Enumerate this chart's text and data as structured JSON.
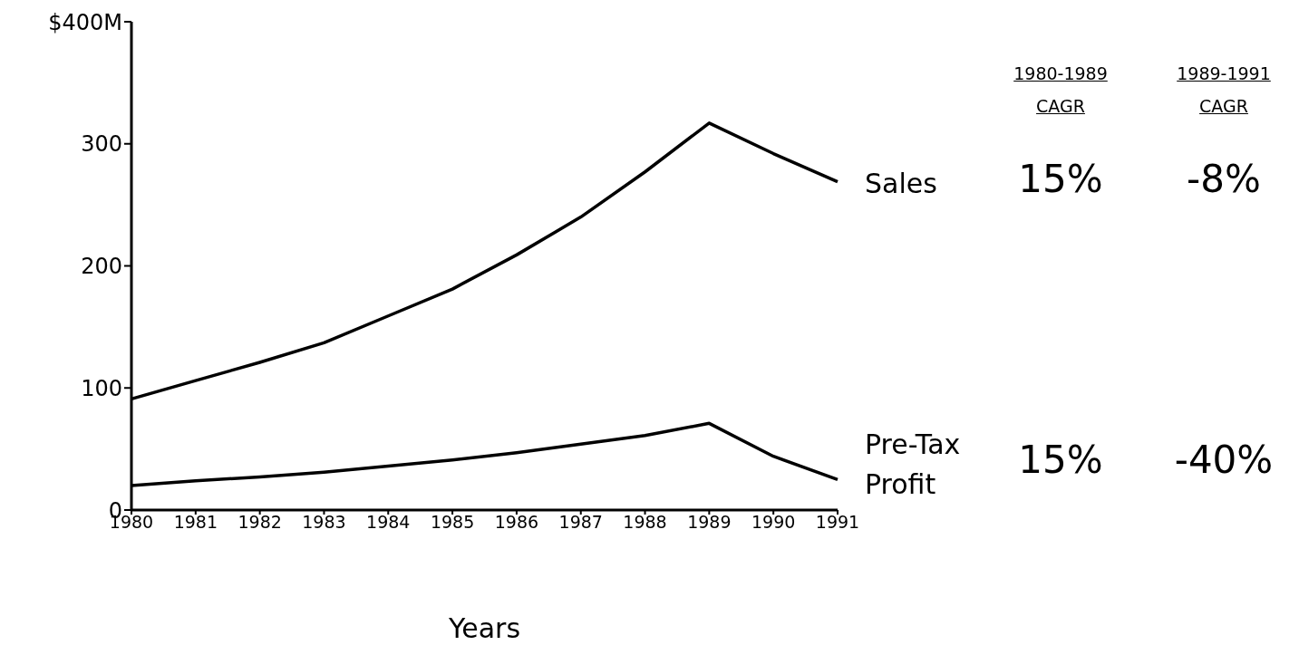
{
  "chart_data": {
    "type": "line",
    "xlabel": "Years",
    "categories": [
      "1980",
      "1981",
      "1982",
      "1983",
      "1984",
      "1985",
      "1986",
      "1987",
      "1988",
      "1989",
      "1990",
      "1991"
    ],
    "series": [
      {
        "name": "Sales",
        "color": "#000000",
        "values": [
          91,
          106,
          121,
          137,
          159,
          181,
          209,
          240,
          277,
          317,
          292,
          269
        ]
      },
      {
        "name": "Pre-Tax Profit",
        "color": "#000000",
        "values": [
          20,
          24,
          27,
          31,
          36,
          41,
          47,
          54,
          61,
          71,
          44,
          25
        ]
      }
    ],
    "ylim": [
      0,
      400
    ],
    "yticks": [
      0,
      100,
      200,
      300,
      {
        "value": 400,
        "label": "$400M"
      }
    ],
    "grid": false,
    "marker": "none",
    "line_style": "solid",
    "annotations": [
      "1980-1989 CAGR",
      "1989-1991 CAGR",
      "15%",
      "-8%",
      "15%",
      "-40%"
    ]
  }
}
